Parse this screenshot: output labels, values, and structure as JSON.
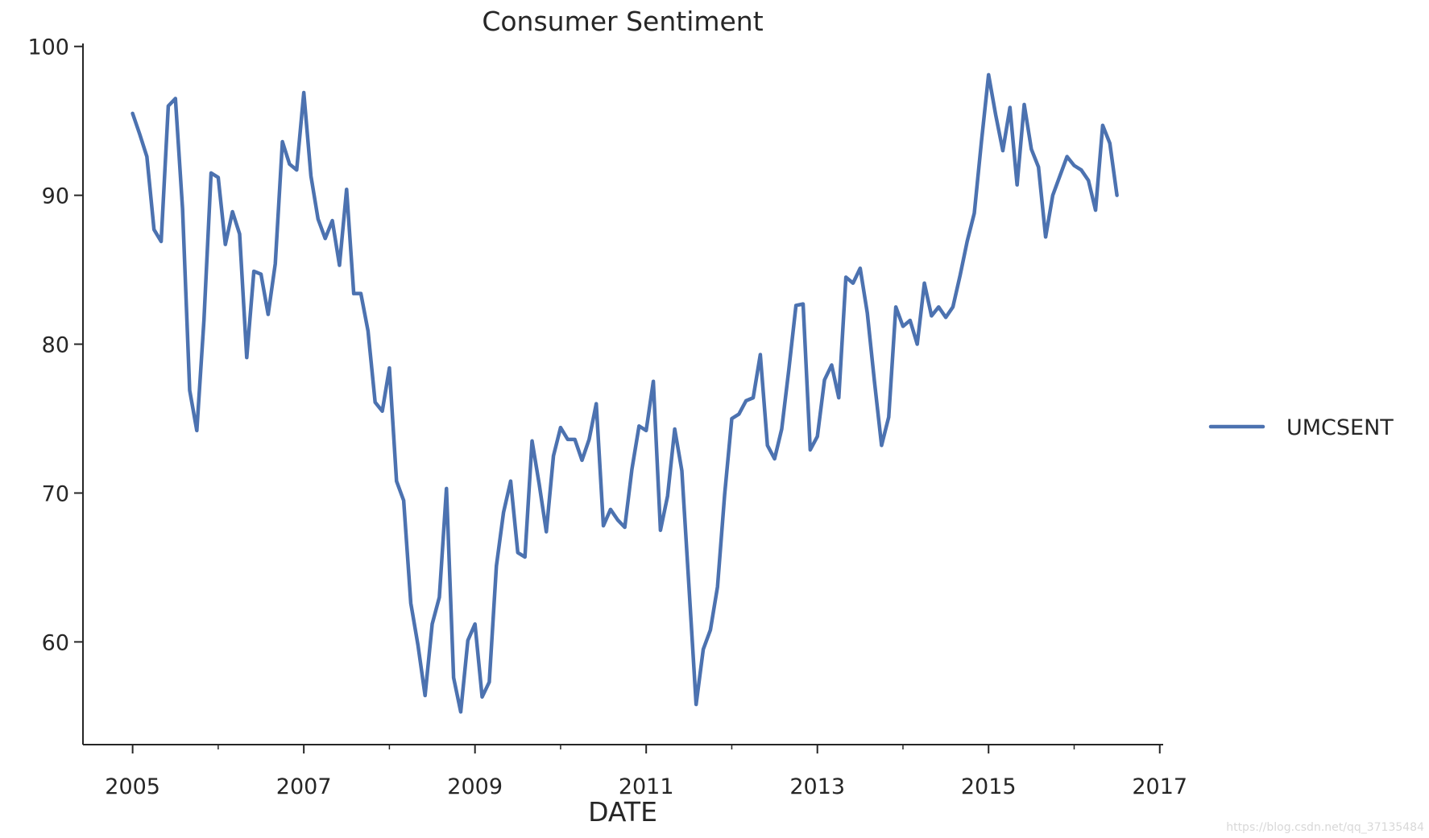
{
  "chart_data": {
    "type": "line",
    "title": "Consumer Sentiment",
    "xlabel": "DATE",
    "ylabel": "",
    "xlim": [
      2004.42,
      2017.04
    ],
    "ylim": [
      53.1,
      100.2
    ],
    "xticks": [
      2005,
      2007,
      2009,
      2011,
      2013,
      2015,
      2017
    ],
    "xtick_labels": [
      "2005",
      "2007",
      "2009",
      "2011",
      "2013",
      "2015",
      "2017"
    ],
    "xminor_ticks": [
      2006,
      2008,
      2010,
      2012,
      2014,
      2016
    ],
    "yticks": [
      60,
      70,
      80,
      90,
      100
    ],
    "ytick_labels": [
      "60",
      "70",
      "80",
      "90",
      "100"
    ],
    "legend_position": "right",
    "grid": false,
    "series": [
      {
        "name": "UMCSENT",
        "color": "#4c72b0",
        "start_year": 2005,
        "start_month": 1,
        "values": [
          95.5,
          94.1,
          92.6,
          87.7,
          86.9,
          96.0,
          96.5,
          89.1,
          76.9,
          74.2,
          81.6,
          91.5,
          91.2,
          86.7,
          88.9,
          87.4,
          79.1,
          84.9,
          84.7,
          82.0,
          85.4,
          93.6,
          92.1,
          91.7,
          96.9,
          91.3,
          88.4,
          87.1,
          88.3,
          85.3,
          90.4,
          83.4,
          83.4,
          80.9,
          76.1,
          75.5,
          78.4,
          70.8,
          69.5,
          62.6,
          59.8,
          56.4,
          61.2,
          63.0,
          70.3,
          57.6,
          55.3,
          60.1,
          61.2,
          56.3,
          57.3,
          65.1,
          68.7,
          70.8,
          66.0,
          65.7,
          73.5,
          70.6,
          67.4,
          72.5,
          74.4,
          73.6,
          73.6,
          72.2,
          73.6,
          76.0,
          67.8,
          68.9,
          68.2,
          67.7,
          71.6,
          74.5,
          74.2,
          77.5,
          67.5,
          69.8,
          74.3,
          71.5,
          63.7,
          55.8,
          59.5,
          60.8,
          63.7,
          69.9,
          75.0,
          75.3,
          76.2,
          76.4,
          79.3,
          73.2,
          72.3,
          74.3,
          78.3,
          82.6,
          82.7,
          72.9,
          73.8,
          77.6,
          78.6,
          76.4,
          84.5,
          84.1,
          85.1,
          82.1,
          77.5,
          73.2,
          75.1,
          82.5,
          81.2,
          81.6,
          80.0,
          84.1,
          81.9,
          82.5,
          81.8,
          82.5,
          84.6,
          86.9,
          88.8,
          93.6,
          98.1,
          95.4,
          93.0,
          95.9,
          90.7,
          96.1,
          93.1,
          91.9,
          87.2,
          90.0,
          91.3,
          92.6,
          92.0,
          91.7,
          91.0,
          89.0,
          94.7,
          93.5,
          90.0
        ]
      }
    ]
  },
  "watermark": "https://blog.csdn.net/qq_37135484"
}
